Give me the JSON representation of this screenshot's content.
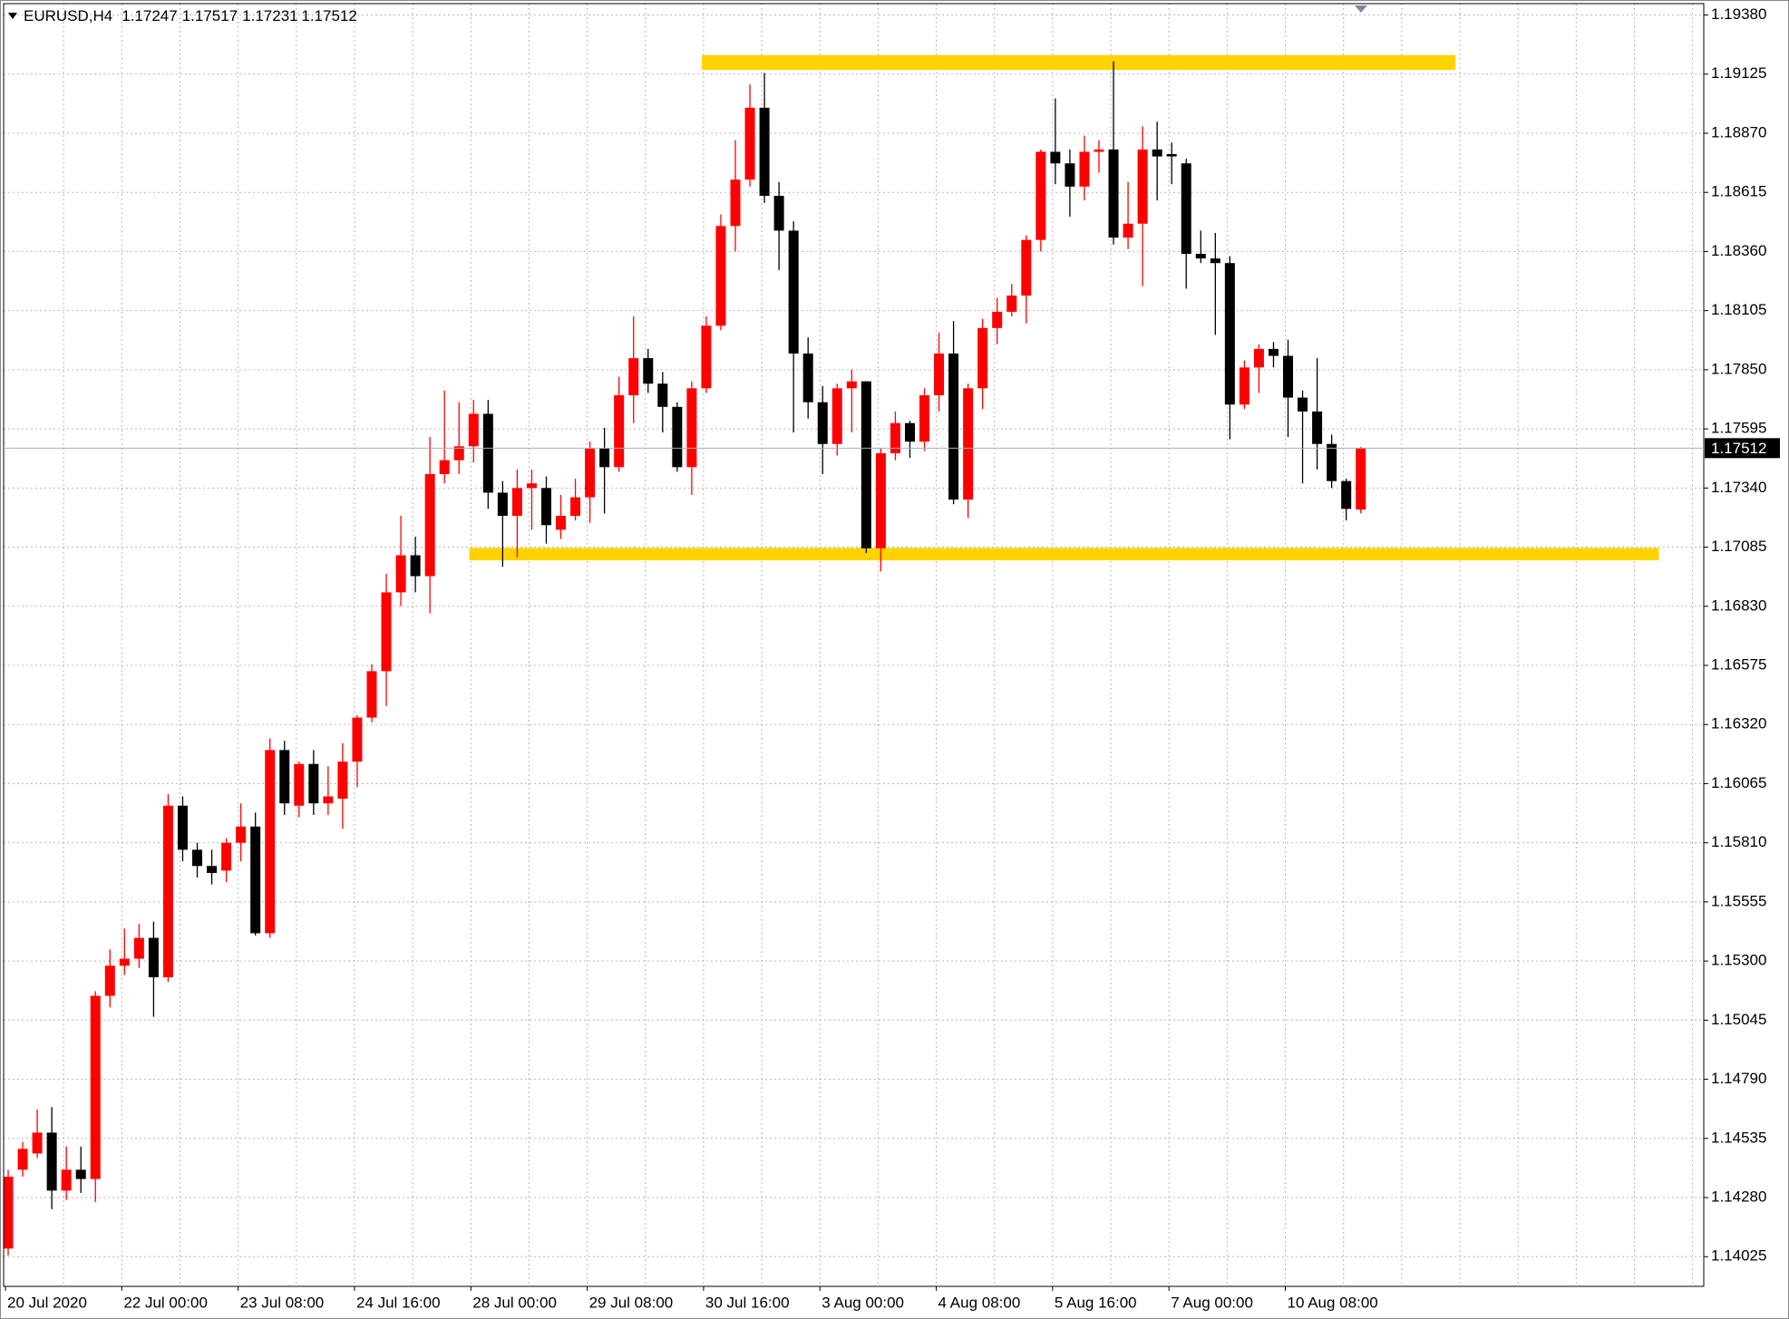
{
  "chart_data": {
    "type": "candlestick",
    "title": "EURUSD,H4",
    "categories": [
      "20 Jul 2020",
      null,
      null,
      null,
      null,
      null,
      null,
      null,
      "22 Jul 00:00",
      null,
      null,
      null,
      null,
      null,
      null,
      null,
      "23 Jul 08:00",
      null,
      null,
      null,
      null,
      null,
      null,
      null,
      "24 Jul 16:00",
      null,
      null,
      null,
      null,
      null,
      null,
      null,
      "28 Jul 00:00",
      null,
      null,
      null,
      null,
      null,
      null,
      null,
      "29 Jul 08:00",
      null,
      null,
      null,
      null,
      null,
      null,
      null,
      "30 Jul 16:00",
      null,
      null,
      null,
      null,
      null,
      null,
      null,
      "3 Aug 00:00",
      null,
      null,
      null,
      null,
      null,
      null,
      null,
      "4 Aug 08:00",
      null,
      null,
      null,
      null,
      null,
      null,
      null,
      "5 Aug 16:00",
      null,
      null,
      null,
      null,
      null,
      null,
      null,
      "7 Aug 00:00",
      null,
      null,
      null,
      null,
      null,
      null,
      null,
      "10 Aug 08:00",
      null,
      null,
      null,
      null,
      null
    ],
    "open": [
      1.1406,
      1.144,
      1.1447,
      1.1456,
      1.1431,
      1.144,
      1.1436,
      1.1515,
      1.1528,
      1.1531,
      1.154,
      1.1523,
      1.1597,
      1.1578,
      1.1571,
      1.1569,
      1.1581,
      1.1588,
      1.1542,
      1.1621,
      1.1597,
      1.1615,
      1.1598,
      1.16,
      1.1616,
      1.1635,
      1.1655,
      1.1689,
      1.1705,
      1.1696,
      1.174,
      1.1746,
      1.1752,
      1.1766,
      1.1732,
      1.1722,
      1.1734,
      1.1734,
      1.1716,
      1.1722,
      1.173,
      1.1751,
      1.1743,
      1.1774,
      1.179,
      1.1779,
      1.1769,
      1.1743,
      1.1777,
      1.1804,
      1.1847,
      1.1867,
      1.1898,
      1.186,
      1.1845,
      1.1792,
      1.1771,
      1.1753,
      1.1777,
      1.178,
      1.1708,
      1.1749,
      1.1762,
      1.1754,
      1.1774,
      1.1792,
      1.1729,
      1.1777,
      1.1803,
      1.181,
      1.1817,
      1.1841,
      1.1879,
      1.1874,
      1.1864,
      1.1879,
      1.188,
      1.1842,
      1.1848,
      1.188,
      1.1878,
      1.1874,
      1.1835,
      1.1833,
      1.1831,
      1.177,
      1.1786,
      1.1794,
      1.1791,
      1.1773,
      1.1767,
      1.1753,
      1.1737,
      1.17247
    ],
    "high": [
      1.144,
      1.1452,
      1.1466,
      1.1467,
      1.145,
      1.145,
      1.1517,
      1.1535,
      1.1544,
      1.1546,
      1.1547,
      1.1602,
      1.1601,
      1.1581,
      1.1578,
      1.1583,
      1.1598,
      1.1594,
      1.1626,
      1.1625,
      1.1616,
      1.1621,
      1.1614,
      1.1624,
      1.1636,
      1.1658,
      1.1697,
      1.1722,
      1.1713,
      1.1756,
      1.1776,
      1.1771,
      1.1772,
      1.1772,
      1.1737,
      1.1742,
      1.1742,
      1.1739,
      1.1731,
      1.1738,
      1.1754,
      1.176,
      1.1782,
      1.1808,
      1.1794,
      1.1784,
      1.1771,
      1.178,
      1.1808,
      1.1852,
      1.1884,
      1.1908,
      1.1913,
      1.1866,
      1.1849,
      1.1799,
      1.1778,
      1.1779,
      1.1785,
      1.178,
      1.1751,
      1.1767,
      1.1763,
      1.1777,
      1.1801,
      1.1806,
      1.1779,
      1.1807,
      1.1816,
      1.1822,
      1.1843,
      1.188,
      1.1902,
      1.188,
      1.1886,
      1.1884,
      1.1918,
      1.1866,
      1.189,
      1.1892,
      1.1883,
      1.1876,
      1.1845,
      1.1844,
      1.1834,
      1.1789,
      1.1796,
      1.1797,
      1.1798,
      1.1776,
      1.179,
      1.1757,
      1.1738,
      1.17517
    ],
    "low": [
      1.1403,
      1.1437,
      1.1445,
      1.1423,
      1.1427,
      1.143,
      1.1426,
      1.151,
      1.1524,
      1.1527,
      1.1506,
      1.1521,
      1.1573,
      1.1566,
      1.1563,
      1.1564,
      1.1573,
      1.1541,
      1.154,
      1.1593,
      1.1592,
      1.1593,
      1.1593,
      1.1587,
      1.1605,
      1.1633,
      1.164,
      1.1683,
      1.1689,
      1.168,
      1.1736,
      1.174,
      1.1745,
      1.1725,
      1.17,
      1.1704,
      1.1716,
      1.171,
      1.1712,
      1.172,
      1.1719,
      1.1723,
      1.1741,
      1.1762,
      1.1775,
      1.1758,
      1.1741,
      1.1731,
      1.1775,
      1.1802,
      1.1836,
      1.1864,
      1.1857,
      1.1828,
      1.1758,
      1.1764,
      1.174,
      1.1748,
      1.1758,
      1.1706,
      1.1698,
      1.1746,
      1.1747,
      1.175,
      1.1767,
      1.1727,
      1.1721,
      1.1768,
      1.1796,
      1.1808,
      1.1805,
      1.1836,
      1.1865,
      1.1851,
      1.1858,
      1.187,
      1.1839,
      1.1837,
      1.1821,
      1.1858,
      1.1865,
      1.182,
      1.1831,
      1.18,
      1.1755,
      1.1768,
      1.1775,
      1.1786,
      1.1756,
      1.1736,
      1.1742,
      1.1734,
      1.172,
      1.17231
    ],
    "close": [
      1.1437,
      1.1449,
      1.1456,
      1.1431,
      1.144,
      1.1436,
      1.1515,
      1.1528,
      1.1531,
      1.154,
      1.1523,
      1.1597,
      1.1578,
      1.1571,
      1.1568,
      1.1581,
      1.1588,
      1.1542,
      1.1621,
      1.1598,
      1.1615,
      1.1598,
      1.1601,
      1.1616,
      1.1635,
      1.1655,
      1.1689,
      1.1705,
      1.1696,
      1.174,
      1.1746,
      1.1752,
      1.1766,
      1.1732,
      1.1722,
      1.1734,
      1.1736,
      1.1718,
      1.1722,
      1.173,
      1.1751,
      1.1743,
      1.1774,
      1.179,
      1.1779,
      1.1769,
      1.1743,
      1.1777,
      1.1804,
      1.1847,
      1.1867,
      1.1898,
      1.186,
      1.1845,
      1.1792,
      1.1771,
      1.1753,
      1.1777,
      1.178,
      1.1708,
      1.1749,
      1.1762,
      1.1754,
      1.1774,
      1.1792,
      1.1729,
      1.1777,
      1.1803,
      1.181,
      1.1817,
      1.1841,
      1.1879,
      1.1874,
      1.1864,
      1.1879,
      1.188,
      1.1842,
      1.1848,
      1.188,
      1.1877,
      1.1877,
      1.1835,
      1.1833,
      1.1831,
      1.177,
      1.1786,
      1.1794,
      1.1791,
      1.1773,
      1.1767,
      1.1753,
      1.1737,
      1.1725,
      1.17512
    ],
    "up_color": "#ff0000",
    "down_color": "#000000",
    "ylim": [
      1.13897,
      1.19429
    ],
    "yticks": [
      {
        "value": 1.1938,
        "label": "1.19380"
      },
      1.19125,
      {
        "value": 1.1887,
        "label": "1.18870"
      },
      1.18615,
      {
        "value": 1.1836,
        "label": "1.18360"
      },
      1.18105,
      {
        "value": 1.1785,
        "label": "1.17850"
      },
      1.17595,
      {
        "value": 1.1734,
        "label": "1.17340"
      },
      1.17085,
      {
        "value": 1.1683,
        "label": "1.16830"
      },
      1.16575,
      {
        "value": 1.1632,
        "label": "1.16320"
      },
      1.16065,
      {
        "value": 1.1581,
        "label": "1.15810"
      },
      1.15555,
      {
        "value": 1.153,
        "label": "1.15300"
      },
      1.15045,
      {
        "value": 1.1479,
        "label": "1.14790"
      },
      1.14535,
      {
        "value": 1.1428,
        "label": "1.14280"
      },
      1.14025
    ],
    "grid": true,
    "levels": [
      {
        "high": 1.19207,
        "low": 1.19143
      },
      {
        "high": 1.17082,
        "low": 1.17028
      }
    ],
    "level_color": "#ffd200"
  }
}
